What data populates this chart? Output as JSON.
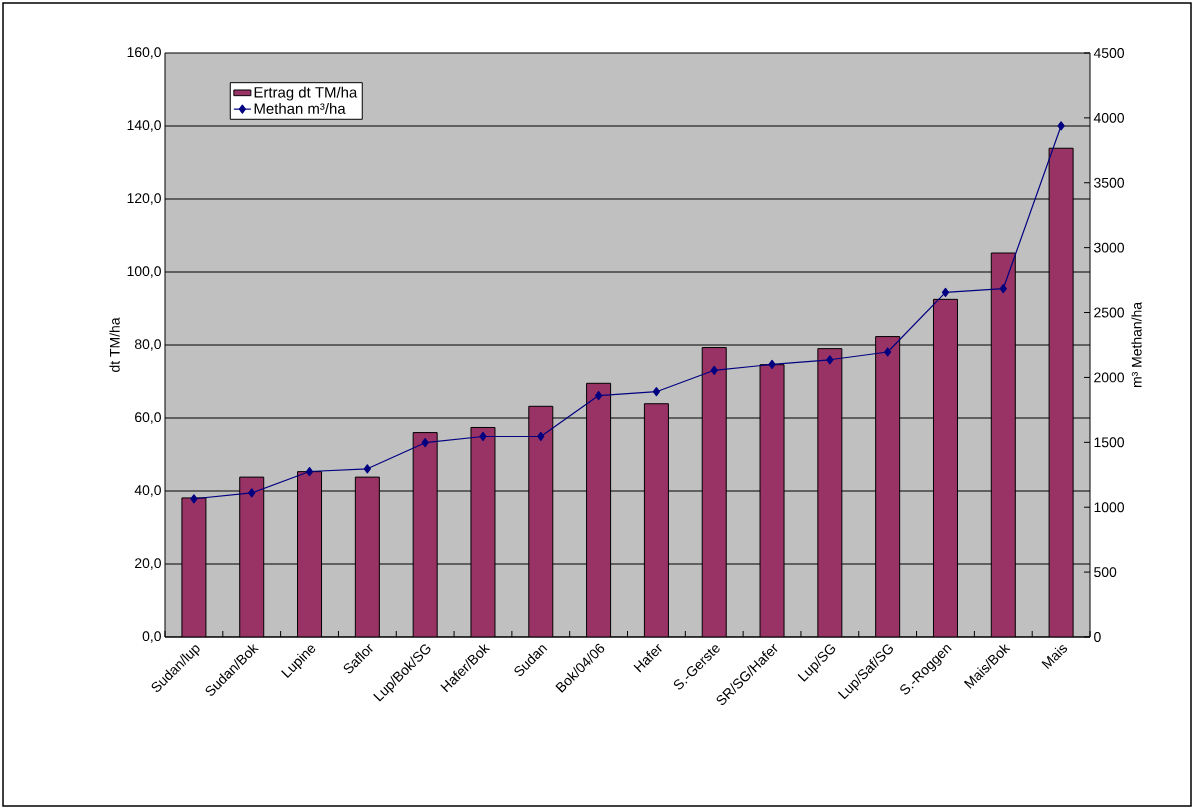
{
  "chart_data": {
    "type": "bar",
    "categories": [
      "Sudan/lup",
      "Sudan/Bok",
      "Lupine",
      "Saflor",
      "Lup/Bok/SG",
      "Hafer/Bok",
      "Sudan",
      "Bok/04/06",
      "Hafer",
      "S.-Gerste",
      "SR/SG/Hafer",
      "Lup/SG",
      "Lup/Saf/SG",
      "S.-Roggen",
      "Mais/Bok",
      "Mais"
    ],
    "series": [
      {
        "name": "Ertrag dt TM/ha",
        "color": "#993366",
        "values": [
          38.1,
          43.8,
          45.3,
          43.8,
          56.0,
          57.4,
          63.2,
          69.5,
          63.9,
          79.3,
          74.6,
          79.0,
          82.3,
          92.5,
          105.2,
          133.9
        ]
      },
      {
        "name": "Methan m³/ha",
        "type": "line",
        "axis": "y2",
        "color": "#000080",
        "values": [
          1065,
          1110,
          1275,
          1296,
          1497,
          1545,
          1545,
          1860,
          1890,
          2055,
          2100,
          2136,
          2196,
          2655,
          2685,
          3939
        ]
      }
    ],
    "ylabel": "dt TM/ha",
    "y2label": "m³ Methan/ha",
    "ylim": [
      0,
      160
    ],
    "yticks": [
      {
        "value": 0,
        "label": "0,0"
      },
      {
        "value": 20,
        "label": "20,0"
      },
      {
        "value": 40,
        "label": "40,0"
      },
      {
        "value": 60,
        "label": "60,0"
      },
      {
        "value": 80,
        "label": "80,0"
      },
      {
        "value": 100,
        "label": "100,0"
      },
      {
        "value": 120,
        "label": "120,0"
      },
      {
        "value": 140,
        "label": "140,0"
      },
      {
        "value": 160,
        "label": "160,0"
      }
    ],
    "y2lim": [
      0,
      4500
    ],
    "y2ticks": [
      0,
      500,
      1000,
      1500,
      2000,
      2500,
      3000,
      3500,
      4000,
      4500
    ],
    "grid": "y",
    "legend": "top left",
    "marker": "diamond"
  }
}
